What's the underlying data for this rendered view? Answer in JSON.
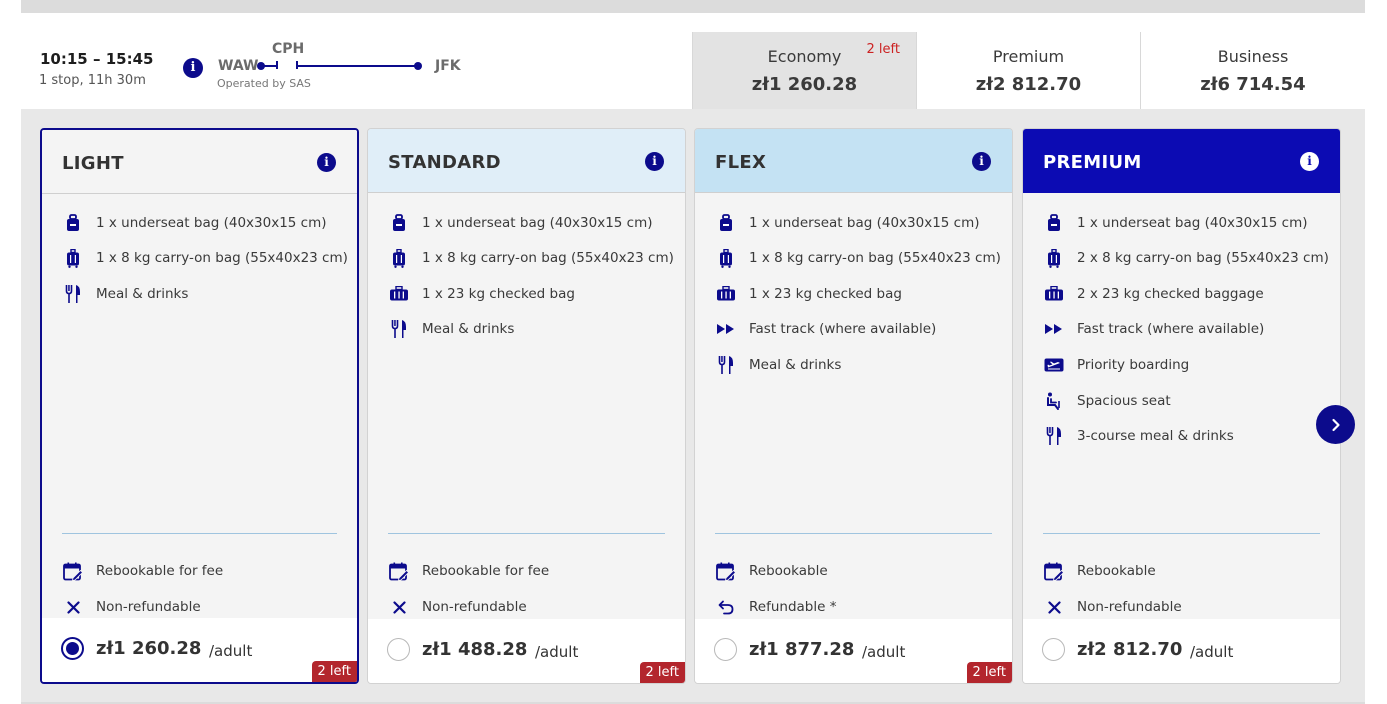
{
  "flight": {
    "times": "10:15 – 15:45",
    "stops": "1 stop, 11h 30m",
    "origin": "WAW",
    "via": "CPH",
    "destination": "JFK",
    "operated_by": "Operated by SAS"
  },
  "cabins": [
    {
      "name": "Economy",
      "price": "zł1 260.28",
      "seats_left": "2 left",
      "selected": true
    },
    {
      "name": "Premium",
      "price": "zł2 812.70",
      "seats_left": "",
      "selected": false
    },
    {
      "name": "Business",
      "price": "zł6 714.54",
      "seats_left": "",
      "selected": false
    }
  ],
  "fares": [
    {
      "title": "LIGHT",
      "features": [
        {
          "icon": "underseat-bag-icon",
          "text": "1 x underseat bag (40x30x15 cm)"
        },
        {
          "icon": "carry-on-bag-icon",
          "text": "1 x 8 kg carry-on bag (55x40x23 cm)"
        },
        {
          "icon": "meal-icon",
          "text": "Meal & drinks"
        }
      ],
      "conditions": [
        {
          "icon": "calendar-edit-icon",
          "text": "Rebookable for fee"
        },
        {
          "icon": "close-icon",
          "text": "Non-refundable"
        }
      ],
      "price": "zł1 260.28",
      "per": "/adult",
      "seats_left": "2 left",
      "selected": true
    },
    {
      "title": "STANDARD",
      "features": [
        {
          "icon": "underseat-bag-icon",
          "text": "1 x underseat bag (40x30x15 cm)"
        },
        {
          "icon": "carry-on-bag-icon",
          "text": "1 x 8 kg carry-on bag (55x40x23 cm)"
        },
        {
          "icon": "checked-bag-icon",
          "text": "1 x 23 kg checked bag"
        },
        {
          "icon": "meal-icon",
          "text": "Meal & drinks"
        }
      ],
      "conditions": [
        {
          "icon": "calendar-edit-icon",
          "text": "Rebookable for fee"
        },
        {
          "icon": "close-icon",
          "text": "Non-refundable"
        }
      ],
      "price": "zł1 488.28",
      "per": "/adult",
      "seats_left": "2 left",
      "selected": false
    },
    {
      "title": "FLEX",
      "features": [
        {
          "icon": "underseat-bag-icon",
          "text": "1 x underseat bag (40x30x15 cm)"
        },
        {
          "icon": "carry-on-bag-icon",
          "text": "1 x 8 kg carry-on bag (55x40x23 cm)"
        },
        {
          "icon": "checked-bag-icon",
          "text": "1 x 23 kg checked bag"
        },
        {
          "icon": "fast-track-icon",
          "text": "Fast track (where available)"
        },
        {
          "icon": "meal-icon",
          "text": "Meal & drinks"
        }
      ],
      "conditions": [
        {
          "icon": "calendar-edit-icon",
          "text": "Rebookable"
        },
        {
          "icon": "refund-arrow-icon",
          "text": "Refundable *"
        }
      ],
      "price": "zł1 877.28",
      "per": "/adult",
      "seats_left": "2 left",
      "selected": false
    },
    {
      "title": "PREMIUM",
      "features": [
        {
          "icon": "underseat-bag-icon",
          "text": "1 x underseat bag (40x30x15 cm)"
        },
        {
          "icon": "carry-on-bag-icon",
          "text": "2 x 8 kg carry-on bag (55x40x23 cm)"
        },
        {
          "icon": "checked-bag-icon",
          "text": "2 x 23 kg checked baggage"
        },
        {
          "icon": "fast-track-icon",
          "text": "Fast track (where available)"
        },
        {
          "icon": "priority-boarding-icon",
          "text": "Priority boarding"
        },
        {
          "icon": "seat-icon",
          "text": "Spacious seat"
        },
        {
          "icon": "meal-icon",
          "text": "3-course meal & drinks"
        }
      ],
      "conditions": [
        {
          "icon": "calendar-edit-icon",
          "text": "Rebookable"
        },
        {
          "icon": "close-icon",
          "text": "Non-refundable"
        }
      ],
      "price": "zł2 812.70",
      "per": "/adult",
      "seats_left": "",
      "selected": false
    }
  ],
  "colors": {
    "brand_blue": "#0c0bb3",
    "icon_blue": "#0c0b8c",
    "seats_left_red": "#b3262d"
  }
}
